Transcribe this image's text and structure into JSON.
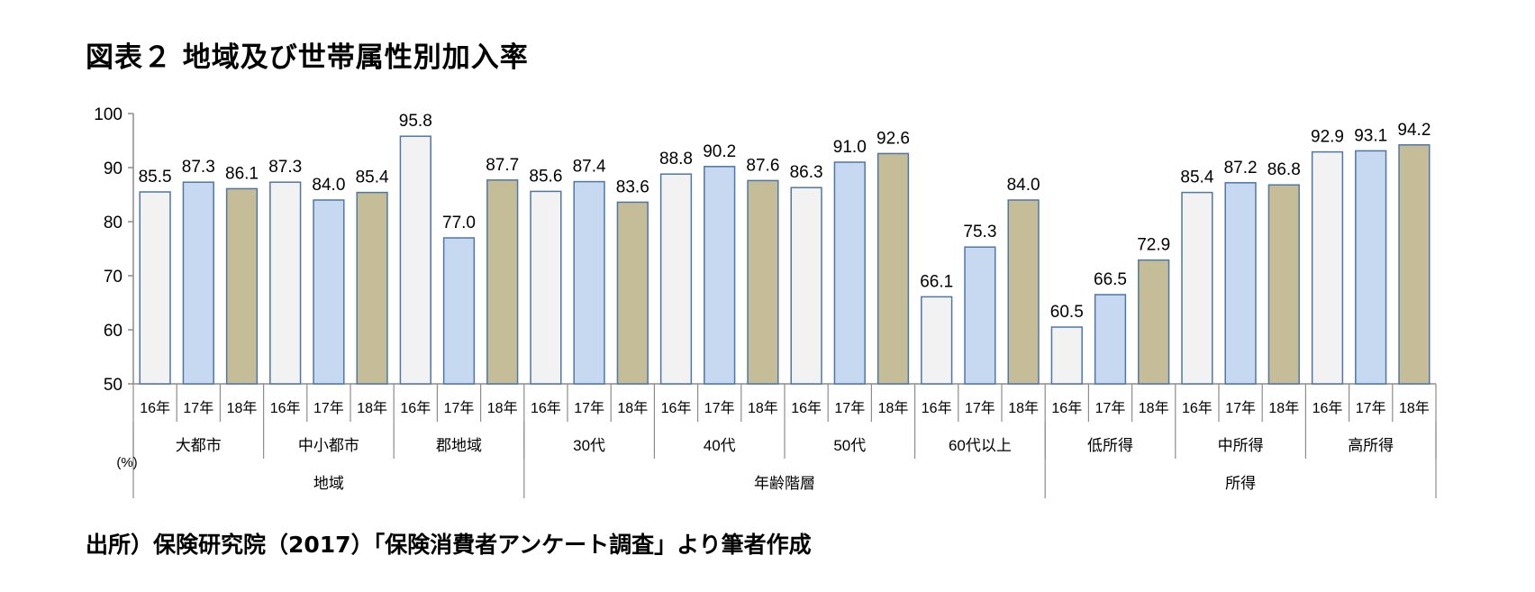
{
  "title": "図表２ 地域及び世帯属性別加入率",
  "source": "出所）保険研究院（2017）「保険消費者アンケート調査」より筆者作成",
  "chart_data": {
    "type": "bar",
    "unit_label": "(%)",
    "ylim": [
      50,
      100
    ],
    "yticks": [
      "100",
      "90",
      "80",
      "70",
      "60",
      "50"
    ],
    "year_labels": [
      "16年",
      "17年",
      "18年"
    ],
    "series_colors": [
      "#f2f2f2",
      "#c6d9f1",
      "#c4bd97"
    ],
    "bar_stroke": "#4f76a6",
    "groups": [
      {
        "name": "大都市",
        "values": [
          85.5,
          87.3,
          86.1
        ],
        "labels": [
          "85.5",
          "87.3",
          "86.1"
        ]
      },
      {
        "name": "中小都市",
        "values": [
          87.3,
          84.0,
          85.4
        ],
        "labels": [
          "87.3",
          "84.0",
          "85.4"
        ]
      },
      {
        "name": "郡地域",
        "values": [
          95.8,
          77.0,
          87.7
        ],
        "labels": [
          "95.8",
          "77.0",
          "87.7"
        ]
      },
      {
        "name": "30代",
        "values": [
          85.6,
          87.4,
          83.6
        ],
        "labels": [
          "85.6",
          "87.4",
          "83.6"
        ]
      },
      {
        "name": "40代",
        "values": [
          88.8,
          90.2,
          87.6
        ],
        "labels": [
          "88.8",
          "90.2",
          "87.6"
        ]
      },
      {
        "name": "50代",
        "values": [
          86.3,
          91.0,
          92.6
        ],
        "labels": [
          "86.3",
          "91.0",
          "92.6"
        ]
      },
      {
        "name": "60代以上",
        "values": [
          66.1,
          75.3,
          84.0
        ],
        "labels": [
          "66.1",
          "75.3",
          "84.0"
        ]
      },
      {
        "name": "低所得",
        "values": [
          60.5,
          66.5,
          72.9
        ],
        "labels": [
          "60.5",
          "66.5",
          "72.9"
        ]
      },
      {
        "name": "中所得",
        "values": [
          85.4,
          87.2,
          86.8
        ],
        "labels": [
          "85.4",
          "87.2",
          "86.8"
        ]
      },
      {
        "name": "高所得",
        "values": [
          92.9,
          93.1,
          94.2
        ],
        "labels": [
          "92.9",
          "93.1",
          "94.2"
        ]
      }
    ],
    "super_groups": [
      {
        "name": "地域",
        "span": 3
      },
      {
        "name": "年齢階層",
        "span": 4
      },
      {
        "name": "所得",
        "span": 3
      }
    ]
  }
}
